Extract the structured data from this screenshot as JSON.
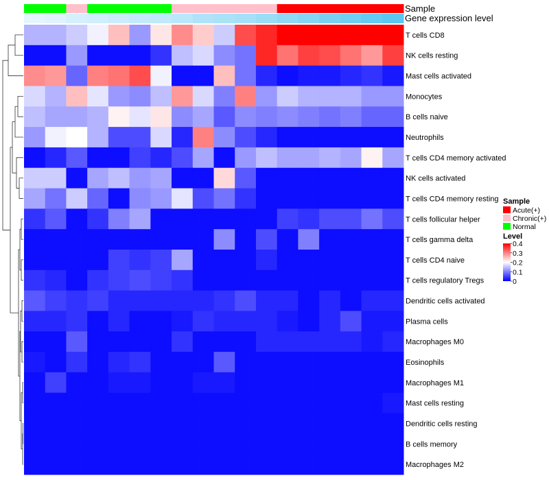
{
  "chart_data": {
    "type": "heatmap",
    "title": "",
    "track_labels": {
      "sample": "Sample",
      "gene": "Gene expression level"
    },
    "rows": [
      "T cells CD8",
      "NK cells resting",
      "Mast cells activated",
      "Monocytes",
      "B cells naive",
      "Neutrophils",
      "T cells CD4 memory activated",
      "NK cells activated",
      "T cells CD4 memory resting",
      "T cells follicular helper",
      "T cells gamma delta",
      "T cells CD4 naive",
      "T cells regulatory  Tregs",
      "Dendritic cells activated",
      "Plasma cells",
      "Macrophages M0",
      "Eosinophils",
      "Macrophages M1",
      "Mast cells resting",
      "Dendritic cells resting",
      "B cells memory",
      "Macrophages M2"
    ],
    "sample_groups": [
      "Normal",
      "Normal",
      "Chronic(+)",
      "Normal",
      "Normal",
      "Normal",
      "Normal",
      "Chronic(+)",
      "Chronic(+)",
      "Chronic(+)",
      "Chronic(+)",
      "Chronic(+)",
      "Acute(+)",
      "Acute(+)",
      "Acute(+)",
      "Acute(+)",
      "Acute(+)",
      "Acute(+)"
    ],
    "gene_level_track": [
      0.02,
      0.03,
      0.05,
      0.06,
      0.07,
      0.08,
      0.09,
      0.1,
      0.12,
      0.13,
      0.14,
      0.16,
      0.18,
      0.2,
      0.22,
      0.24,
      0.26,
      0.28
    ],
    "values": [
      [
        0.14,
        0.14,
        0.16,
        0.19,
        0.25,
        0.12,
        0.22,
        0.29,
        0.24,
        0.16,
        0.34,
        0.37,
        0.4,
        0.4,
        0.4,
        0.4,
        0.4,
        0.4
      ],
      [
        0.01,
        0.01,
        0.12,
        0.01,
        0.01,
        0.01,
        0.04,
        0.15,
        0.17,
        0.11,
        0.09,
        0.37,
        0.31,
        0.35,
        0.34,
        0.31,
        0.28,
        0.35
      ],
      [
        0.29,
        0.28,
        0.08,
        0.3,
        0.31,
        0.34,
        0.19,
        0.01,
        0.01,
        0.25,
        0.09,
        0.03,
        0.01,
        0.02,
        0.02,
        0.03,
        0.04,
        0.02
      ],
      [
        0.17,
        0.14,
        0.25,
        0.18,
        0.12,
        0.11,
        0.15,
        0.28,
        0.17,
        0.1,
        0.3,
        0.12,
        0.16,
        0.14,
        0.14,
        0.14,
        0.12,
        0.12
      ],
      [
        0.15,
        0.13,
        0.13,
        0.14,
        0.21,
        0.18,
        0.22,
        0.11,
        0.13,
        0.07,
        0.11,
        0.1,
        0.11,
        0.1,
        0.09,
        0.1,
        0.08,
        0.08
      ],
      [
        0.12,
        0.19,
        0.2,
        0.14,
        0.06,
        0.06,
        0.17,
        0.03,
        0.3,
        0.11,
        0.06,
        0.03,
        0.01,
        0.01,
        0.01,
        0.01,
        0.01,
        0.01
      ],
      [
        0.01,
        0.03,
        0.07,
        0.01,
        0.01,
        0.05,
        0.03,
        0.06,
        0.13,
        0.01,
        0.12,
        0.15,
        0.13,
        0.13,
        0.14,
        0.13,
        0.21,
        0.13
      ],
      [
        0.16,
        0.16,
        0.01,
        0.13,
        0.15,
        0.12,
        0.13,
        0.01,
        0.01,
        0.23,
        0.07,
        0.01,
        0.01,
        0.01,
        0.01,
        0.01,
        0.01,
        0.01
      ],
      [
        0.13,
        0.09,
        0.16,
        0.08,
        0.01,
        0.11,
        0.12,
        0.18,
        0.06,
        0.09,
        0.04,
        0.01,
        0.01,
        0.01,
        0.01,
        0.01,
        0.01,
        0.01
      ],
      [
        0.04,
        0.07,
        0.01,
        0.04,
        0.1,
        0.13,
        0.01,
        0.01,
        0.01,
        0.01,
        0.01,
        0.01,
        0.05,
        0.04,
        0.06,
        0.06,
        0.09,
        0.06
      ],
      [
        0.01,
        0.01,
        0.01,
        0.01,
        0.01,
        0.01,
        0.01,
        0.01,
        0.01,
        0.11,
        0.01,
        0.06,
        0.01,
        0.1,
        0.01,
        0.01,
        0.01,
        0.01
      ],
      [
        0.01,
        0.01,
        0.01,
        0.01,
        0.05,
        0.04,
        0.05,
        0.13,
        0.01,
        0.01,
        0.01,
        0.03,
        0.01,
        0.01,
        0.01,
        0.01,
        0.01,
        0.01
      ],
      [
        0.04,
        0.03,
        0.01,
        0.04,
        0.05,
        0.06,
        0.05,
        0.04,
        0.01,
        0.01,
        0.01,
        0.01,
        0.01,
        0.01,
        0.01,
        0.01,
        0.01,
        0.01
      ],
      [
        0.07,
        0.05,
        0.04,
        0.05,
        0.03,
        0.03,
        0.03,
        0.03,
        0.03,
        0.04,
        0.06,
        0.03,
        0.03,
        0.01,
        0.03,
        0.01,
        0.03,
        0.03
      ],
      [
        0.03,
        0.03,
        0.04,
        0.01,
        0.03,
        0.01,
        0.01,
        0.02,
        0.04,
        0.03,
        0.03,
        0.03,
        0.02,
        0.01,
        0.03,
        0.06,
        0.02,
        0.02
      ],
      [
        0.01,
        0.01,
        0.07,
        0.01,
        0.01,
        0.01,
        0.01,
        0.04,
        0.01,
        0.01,
        0.01,
        0.03,
        0.03,
        0.03,
        0.03,
        0.03,
        0.02,
        0.03
      ],
      [
        0.02,
        0.01,
        0.04,
        0.01,
        0.03,
        0.04,
        0.01,
        0.01,
        0.01,
        0.07,
        0.01,
        0.01,
        0.01,
        0.01,
        0.01,
        0.01,
        0.01,
        0.01
      ],
      [
        0.01,
        0.05,
        0.01,
        0.01,
        0.02,
        0.02,
        0.01,
        0.01,
        0.02,
        0.02,
        0.01,
        0.01,
        0.01,
        0.01,
        0.01,
        0.01,
        0.01,
        0.01
      ],
      [
        0.01,
        0.01,
        0.01,
        0.01,
        0.01,
        0.01,
        0.01,
        0.01,
        0.01,
        0.01,
        0.01,
        0.01,
        0.01,
        0.01,
        0.01,
        0.01,
        0.01,
        0.02
      ],
      [
        0.01,
        0.01,
        0.01,
        0.01,
        0.01,
        0.01,
        0.01,
        0.01,
        0.01,
        0.01,
        0.01,
        0.01,
        0.01,
        0.01,
        0.01,
        0.01,
        0.01,
        0.01
      ],
      [
        0.01,
        0.01,
        0.01,
        0.01,
        0.01,
        0.01,
        0.01,
        0.01,
        0.01,
        0.01,
        0.01,
        0.01,
        0.01,
        0.01,
        0.01,
        0.01,
        0.01,
        0.01
      ],
      [
        0.01,
        0.01,
        0.01,
        0.01,
        0.01,
        0.01,
        0.01,
        0.01,
        0.01,
        0.01,
        0.01,
        0.01,
        0.01,
        0.01,
        0.01,
        0.01,
        0.01,
        0.01
      ]
    ],
    "color_scale": {
      "min": 0,
      "mid": 0.2,
      "max": 0.4,
      "low": "#0000ff",
      "mid_color": "#ffffff",
      "high": "#ff0000"
    },
    "legend": {
      "position": "right",
      "sample_title": "Sample",
      "sample_entries": [
        {
          "label": "Acute(+)",
          "color": "#ff0000"
        },
        {
          "label": "Chronic(+)",
          "color": "#ffc0cb"
        },
        {
          "label": "Normal",
          "color": "#00ff00"
        }
      ],
      "level_title": "Level",
      "level_ticks": [
        {
          "value": 0.4,
          "label": "0.4"
        },
        {
          "value": 0.3,
          "label": "0.3"
        },
        {
          "value": 0.2,
          "label": "0.2"
        },
        {
          "value": 0.1,
          "label": "0.1"
        },
        {
          "value": 0,
          "label": "0"
        }
      ]
    }
  }
}
